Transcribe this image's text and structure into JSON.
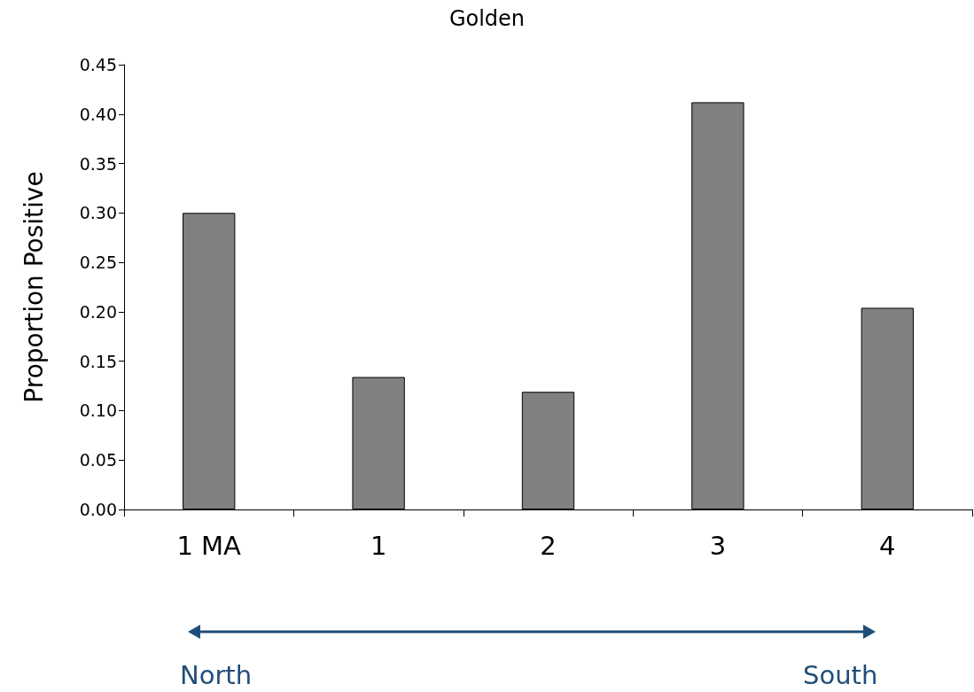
{
  "chart_data": {
    "type": "bar",
    "title": "Golden",
    "ylabel": "Proportion Positive",
    "categories": [
      "1 MA",
      "1",
      "2",
      "3",
      "4"
    ],
    "values": [
      0.3,
      0.134,
      0.119,
      0.412,
      0.204
    ],
    "color": "#808080",
    "ylim": [
      0,
      0.45
    ],
    "yticks": [
      {
        "value": 0,
        "label": "0.00"
      },
      {
        "value": 0.05,
        "label": "0.05"
      },
      {
        "value": 0.1,
        "label": "0.10"
      },
      {
        "value": 0.15,
        "label": "0.15"
      },
      {
        "value": 0.2,
        "label": "0.20"
      },
      {
        "value": 0.25,
        "label": "0.25"
      },
      {
        "value": 0.3,
        "label": "0.30"
      },
      {
        "value": 0.35,
        "label": "0.35"
      },
      {
        "value": 0.4,
        "label": "0.40"
      },
      {
        "value": 0.45,
        "label": "0.45"
      }
    ],
    "grid": false,
    "annotations": [
      "North",
      "South"
    ]
  }
}
